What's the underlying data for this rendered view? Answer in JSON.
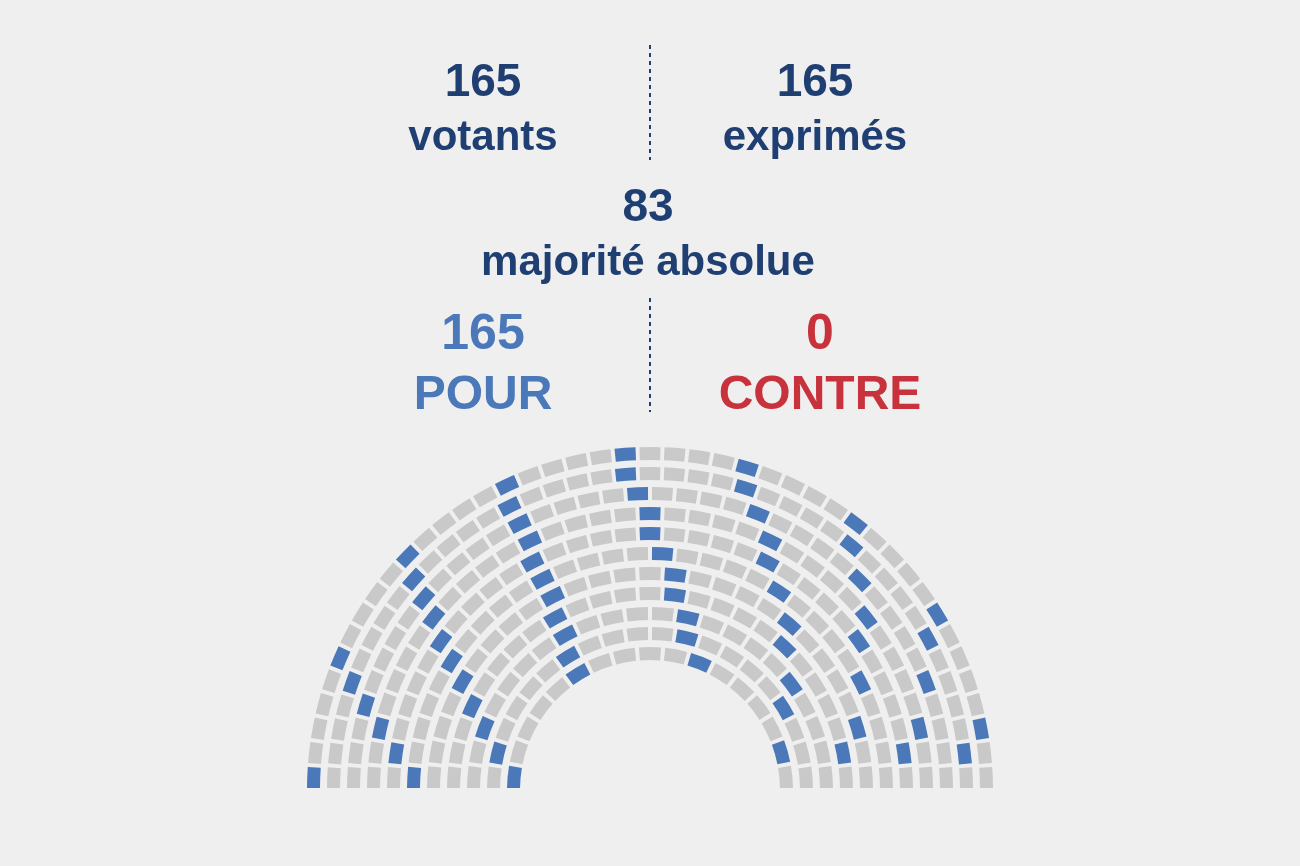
{
  "chart_data": {
    "type": "other",
    "categories": [
      "votants",
      "exprimés",
      "majorité absolue",
      "POUR",
      "CONTRE"
    ],
    "values": [
      165,
      165,
      83,
      165,
      0
    ],
    "colors": [
      "#1f3f73",
      "#1f3f73",
      "#1f3f73",
      "#4a78b8",
      "#c8323c"
    ],
    "data_labels": true
  }
}
